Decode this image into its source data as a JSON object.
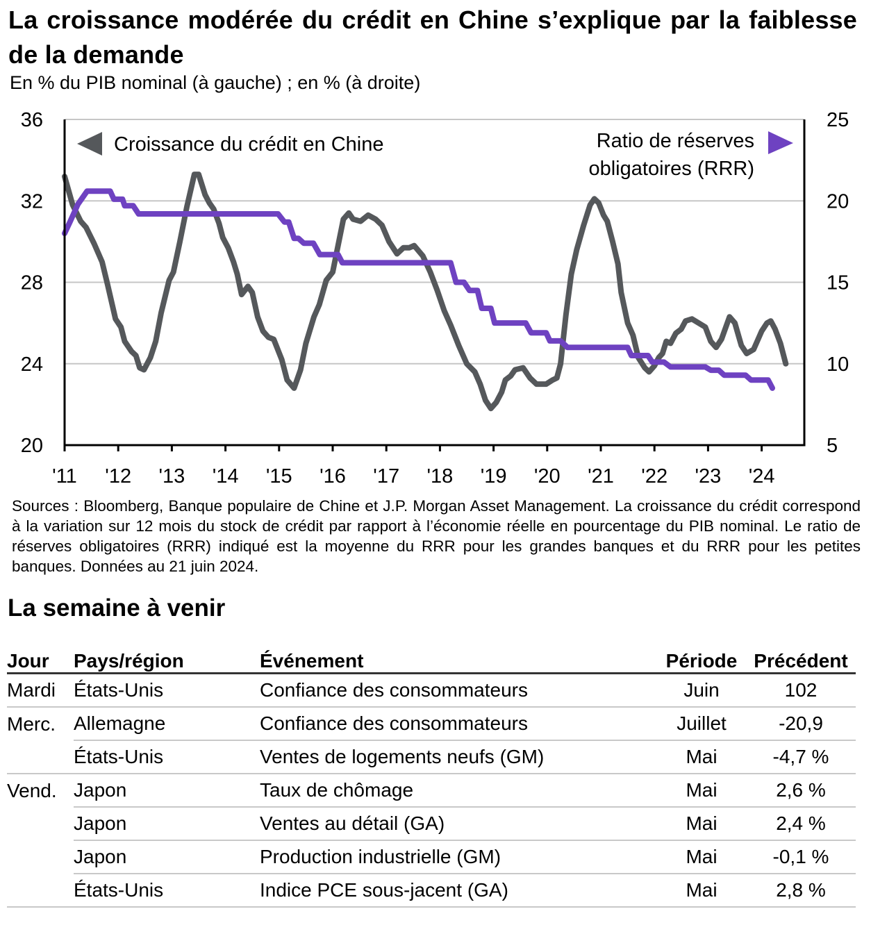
{
  "header": {
    "title": "La croissance modérée du crédit en Chine s’explique par la faiblesse de la demande",
    "subtitle": "En % du PIB nominal (à gauche) ; en % (à droite)"
  },
  "chart_data": {
    "type": "line",
    "title": "La croissance modérée du crédit en Chine s’explique par la faiblesse de la demande",
    "subtitle": "En % du PIB nominal (à gauche) ; en % (à droite)",
    "xlabel": "",
    "ylabel_left": "En % du PIB nominal",
    "ylabel_right": "En %",
    "x_ticks": [
      "'11",
      "'12",
      "'13",
      "'14",
      "'15",
      "'16",
      "'17",
      "'18",
      "'19",
      "'20",
      "'21",
      "'22",
      "'23",
      "'24"
    ],
    "x_range": [
      2011,
      2025.35
    ],
    "y_left": {
      "ticks": [
        "20",
        "24",
        "28",
        "32",
        "36"
      ],
      "range": [
        20,
        36
      ]
    },
    "y_right": {
      "ticks": [
        "5",
        "10",
        "15",
        "20",
        "25"
      ],
      "range": [
        5,
        25
      ]
    },
    "grid": true,
    "series": [
      {
        "name": "Croissance du crédit en Chine",
        "axis": "left",
        "color": "#55585b",
        "marker": "◀",
        "points": [
          [
            2011.0,
            33.2
          ],
          [
            2011.15,
            31.8
          ],
          [
            2011.3,
            31.0
          ],
          [
            2011.4,
            30.7
          ],
          [
            2011.55,
            29.9
          ],
          [
            2011.7,
            29.0
          ],
          [
            2011.8,
            27.9
          ],
          [
            2011.95,
            26.2
          ],
          [
            2012.05,
            25.8
          ],
          [
            2012.12,
            25.1
          ],
          [
            2012.25,
            24.6
          ],
          [
            2012.33,
            24.4
          ],
          [
            2012.4,
            23.8
          ],
          [
            2012.48,
            23.7
          ],
          [
            2012.6,
            24.3
          ],
          [
            2012.7,
            25.1
          ],
          [
            2012.8,
            26.5
          ],
          [
            2012.95,
            28.1
          ],
          [
            2013.03,
            28.5
          ],
          [
            2013.15,
            30.0
          ],
          [
            2013.28,
            31.7
          ],
          [
            2013.42,
            33.3
          ],
          [
            2013.5,
            33.3
          ],
          [
            2013.62,
            32.3
          ],
          [
            2013.7,
            31.9
          ],
          [
            2013.78,
            31.6
          ],
          [
            2013.88,
            30.9
          ],
          [
            2013.95,
            30.2
          ],
          [
            2014.05,
            29.7
          ],
          [
            2014.15,
            29.0
          ],
          [
            2014.22,
            28.4
          ],
          [
            2014.3,
            27.4
          ],
          [
            2014.42,
            27.8
          ],
          [
            2014.5,
            27.5
          ],
          [
            2014.6,
            26.3
          ],
          [
            2014.7,
            25.6
          ],
          [
            2014.8,
            25.3
          ],
          [
            2014.9,
            25.2
          ],
          [
            2015.05,
            24.2
          ],
          [
            2015.15,
            23.2
          ],
          [
            2015.28,
            22.8
          ],
          [
            2015.4,
            23.7
          ],
          [
            2015.5,
            25.0
          ],
          [
            2015.65,
            26.3
          ],
          [
            2015.75,
            26.9
          ],
          [
            2015.88,
            28.1
          ],
          [
            2016.0,
            28.5
          ],
          [
            2016.1,
            29.8
          ],
          [
            2016.2,
            31.1
          ],
          [
            2016.3,
            31.4
          ],
          [
            2016.38,
            31.1
          ],
          [
            2016.52,
            31.0
          ],
          [
            2016.66,
            31.3
          ],
          [
            2016.8,
            31.1
          ],
          [
            2016.92,
            30.8
          ],
          [
            2017.05,
            30.0
          ],
          [
            2017.2,
            29.4
          ],
          [
            2017.32,
            29.7
          ],
          [
            2017.43,
            29.7
          ],
          [
            2017.52,
            29.8
          ],
          [
            2017.68,
            29.3
          ],
          [
            2017.82,
            28.5
          ],
          [
            2017.95,
            27.6
          ],
          [
            2018.08,
            26.6
          ],
          [
            2018.2,
            25.9
          ],
          [
            2018.35,
            24.9
          ],
          [
            2018.5,
            24.0
          ],
          [
            2018.65,
            23.6
          ],
          [
            2018.75,
            23.0
          ],
          [
            2018.85,
            22.2
          ],
          [
            2018.95,
            21.8
          ],
          [
            2019.05,
            22.1
          ],
          [
            2019.15,
            22.6
          ],
          [
            2019.22,
            23.2
          ],
          [
            2019.32,
            23.4
          ],
          [
            2019.4,
            23.7
          ],
          [
            2019.55,
            23.8
          ],
          [
            2019.68,
            23.3
          ],
          [
            2019.8,
            23.0
          ],
          [
            2019.98,
            23.0
          ],
          [
            2020.1,
            23.2
          ],
          [
            2020.18,
            23.3
          ],
          [
            2020.25,
            24.0
          ],
          [
            2020.35,
            26.4
          ],
          [
            2020.45,
            28.4
          ],
          [
            2020.55,
            29.6
          ],
          [
            2020.68,
            30.8
          ],
          [
            2020.8,
            31.8
          ],
          [
            2020.88,
            32.1
          ],
          [
            2020.96,
            31.9
          ],
          [
            2021.05,
            31.3
          ],
          [
            2021.12,
            31.0
          ],
          [
            2021.22,
            30.0
          ],
          [
            2021.32,
            28.9
          ],
          [
            2021.38,
            27.5
          ],
          [
            2021.5,
            26.0
          ],
          [
            2021.6,
            25.4
          ],
          [
            2021.7,
            24.3
          ],
          [
            2021.82,
            23.8
          ],
          [
            2021.9,
            23.6
          ],
          [
            2022.0,
            23.9
          ],
          [
            2022.08,
            24.3
          ],
          [
            2022.15,
            24.5
          ],
          [
            2022.22,
            25.1
          ],
          [
            2022.3,
            25.0
          ],
          [
            2022.4,
            25.5
          ],
          [
            2022.5,
            25.7
          ],
          [
            2022.58,
            26.1
          ],
          [
            2022.7,
            26.2
          ],
          [
            2022.95,
            25.8
          ],
          [
            2023.05,
            25.1
          ],
          [
            2023.15,
            24.8
          ],
          [
            2023.25,
            25.2
          ],
          [
            2023.4,
            26.3
          ],
          [
            2023.5,
            26.0
          ],
          [
            2023.62,
            24.9
          ],
          [
            2023.72,
            24.5
          ],
          [
            2023.85,
            24.7
          ],
          [
            2024.0,
            25.6
          ],
          [
            2024.1,
            26.0
          ],
          [
            2024.17,
            26.1
          ],
          [
            2024.25,
            25.7
          ],
          [
            2024.35,
            25.0
          ],
          [
            2024.45,
            24.0
          ]
        ]
      },
      {
        "name": "Ratio de réserves obligatoires (RRR)",
        "axis": "right",
        "color": "#6e42c1",
        "marker": "▶",
        "points": [
          [
            2011.0,
            18.0
          ],
          [
            2011.1,
            18.7
          ],
          [
            2011.25,
            19.8
          ],
          [
            2011.42,
            20.6
          ],
          [
            2011.85,
            20.6
          ],
          [
            2011.92,
            20.1
          ],
          [
            2012.08,
            20.1
          ],
          [
            2012.12,
            19.7
          ],
          [
            2012.28,
            19.7
          ],
          [
            2012.38,
            19.2
          ],
          [
            2014.98,
            19.2
          ],
          [
            2015.1,
            18.7
          ],
          [
            2015.18,
            18.7
          ],
          [
            2015.28,
            17.7
          ],
          [
            2015.36,
            17.7
          ],
          [
            2015.46,
            17.4
          ],
          [
            2015.64,
            17.4
          ],
          [
            2015.76,
            16.7
          ],
          [
            2016.1,
            16.7
          ],
          [
            2016.18,
            16.2
          ],
          [
            2018.2,
            16.2
          ],
          [
            2018.3,
            15.0
          ],
          [
            2018.45,
            15.0
          ],
          [
            2018.55,
            14.5
          ],
          [
            2018.7,
            14.5
          ],
          [
            2018.78,
            13.4
          ],
          [
            2018.95,
            13.4
          ],
          [
            2019.02,
            12.5
          ],
          [
            2019.6,
            12.5
          ],
          [
            2019.7,
            11.9
          ],
          [
            2019.98,
            11.9
          ],
          [
            2020.05,
            11.4
          ],
          [
            2020.25,
            11.4
          ],
          [
            2020.38,
            11.0
          ],
          [
            2021.5,
            11.0
          ],
          [
            2021.57,
            10.5
          ],
          [
            2021.88,
            10.5
          ],
          [
            2021.96,
            10.1
          ],
          [
            2022.18,
            10.1
          ],
          [
            2022.3,
            9.8
          ],
          [
            2022.95,
            9.8
          ],
          [
            2023.05,
            9.6
          ],
          [
            2023.2,
            9.6
          ],
          [
            2023.3,
            9.3
          ],
          [
            2023.7,
            9.3
          ],
          [
            2023.8,
            9.0
          ],
          [
            2024.12,
            9.0
          ],
          [
            2024.2,
            8.5
          ]
        ]
      }
    ],
    "legend": [
      {
        "label": "Croissance du crédit en Chine",
        "placement": "top-left",
        "marker": "left-pointing triangle (left axis)"
      },
      {
        "label": "Ratio de réserves obligatoires (RRR)",
        "placement": "top-right",
        "marker": "right-pointing triangle (right axis)"
      }
    ]
  },
  "legend": {
    "left_label": "Croissance du crédit en Chine",
    "right_label_line1": "Ratio de réserves",
    "right_label_line2": "obligatoires (RRR)"
  },
  "sources": "Sources : Bloomberg, Banque populaire de Chine et J.P. Morgan Asset Management. La croissance du crédit correspond à la variation sur 12 mois du stock de crédit par rapport à l’économie réelle en pourcentage du PIB nominal. Le ratio de réserves obligatoires (RRR) indiqué est la moyenne du RRR pour les grandes banques et du RRR pour les petites banques. Données au 21 juin 2024.",
  "week": {
    "title": "La semaine à venir",
    "columns": [
      "Jour",
      "Pays/région",
      "Événement",
      "Période",
      "Précédent"
    ],
    "rows": [
      {
        "day": "Mardi",
        "country": "États-Unis",
        "event": "Confiance des consommateurs",
        "period": "Juin",
        "previous": "102"
      },
      {
        "day": "Merc.",
        "country": "Allemagne",
        "event": "Confiance des consommateurs",
        "period": "Juillet",
        "previous": "-20,9"
      },
      {
        "day": "",
        "country": "États-Unis",
        "event": "Ventes de logements neufs (GM)",
        "period": "Mai",
        "previous": "-4,7 %"
      },
      {
        "day": "Vend.",
        "country": "Japon",
        "event": "Taux de chômage",
        "period": "Mai",
        "previous": "2,6 %"
      },
      {
        "day": "",
        "country": "Japon",
        "event": "Ventes au détail (GA)",
        "period": "Mai",
        "previous": "2,4 %"
      },
      {
        "day": "",
        "country": "Japon",
        "event": "Production industrielle (GM)",
        "period": "Mai",
        "previous": "-0,1 %"
      },
      {
        "day": "",
        "country": "États-Unis",
        "event": "Indice PCE sous-jacent (GA)",
        "period": "Mai",
        "previous": "2,8 %"
      }
    ]
  }
}
